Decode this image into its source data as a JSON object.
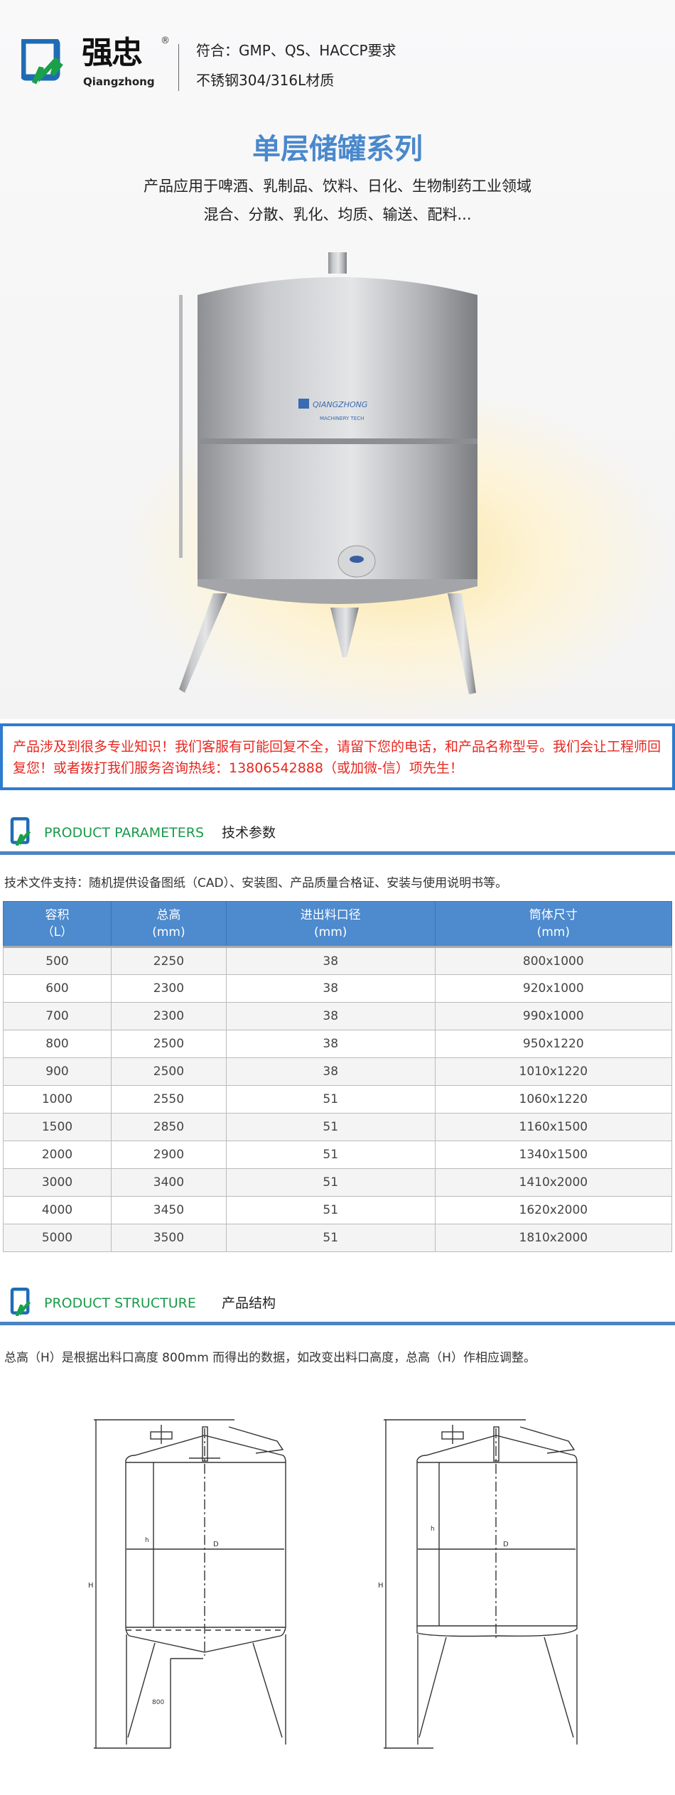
{
  "header": {
    "brand_cn": "强忠",
    "brand_en": "Qiangzhong",
    "registered": "®",
    "spec_lines": [
      "符合：GMP、QS、HACCP要求",
      "不锈钢304/316L材质"
    ]
  },
  "hero": {
    "title": "单层储罐系列",
    "subtitle_lines": [
      "产品应用于啤酒、乳制品、饮料、日化、生物制药工业领域",
      "混合、分散、乳化、均质、输送、配料..."
    ],
    "tank_plate": "QIANGZHONG",
    "tank_plate_sub": "MACHINERY TECH"
  },
  "notice": "产品涉及到很多专业知识！我们客服有可能回复不全，请留下您的电话，和产品名称型号。我们会让工程师回复您！或者拨打我们服务咨询热线：13806542888（或加微-信）项先生！",
  "parameters": {
    "heading_en": "PRODUCT PARAMETERS",
    "heading_cn": "技术参数",
    "description": "技术文件支持：随机提供设备图纸（CAD）、安装图、产品质量合格证、安装与使用说明书等。",
    "columns": [
      {
        "name": "容积",
        "unit": "（L）"
      },
      {
        "name": "总高",
        "unit": "(mm)"
      },
      {
        "name": "进出料口径",
        "unit": "(mm)"
      },
      {
        "name": "筒体尺寸",
        "unit": "(mm)"
      }
    ],
    "rows": [
      [
        "500",
        "2250",
        "38",
        "800x1000"
      ],
      [
        "600",
        "2300",
        "38",
        "920x1000"
      ],
      [
        "700",
        "2300",
        "38",
        "990x1000"
      ],
      [
        "800",
        "2500",
        "38",
        "950x1220"
      ],
      [
        "900",
        "2500",
        "38",
        "1010x1220"
      ],
      [
        "1000",
        "2550",
        "51",
        "1060x1220"
      ],
      [
        "1500",
        "2850",
        "51",
        "1160x1500"
      ],
      [
        "2000",
        "2900",
        "51",
        "1340x1500"
      ],
      [
        "3000",
        "3400",
        "51",
        "1410x2000"
      ],
      [
        "4000",
        "3450",
        "51",
        "1620x2000"
      ],
      [
        "5000",
        "3500",
        "51",
        "1810x2000"
      ]
    ]
  },
  "structure": {
    "heading_en": "PRODUCT STRUCTURE",
    "heading_cn": "产品结构",
    "note": "总高（H）是根据出料口高度 800mm 而得出的数据，如改变出料口高度，总高（H）作相应调整。",
    "labels": {
      "H": "H",
      "h": "h",
      "D": "D",
      "outlet_height": "800"
    }
  },
  "colors": {
    "accent_blue": "#4d8ace",
    "title_blue": "#4a88cc",
    "notice_red": "#e8261f",
    "heading_green": "#1a9a4a"
  }
}
